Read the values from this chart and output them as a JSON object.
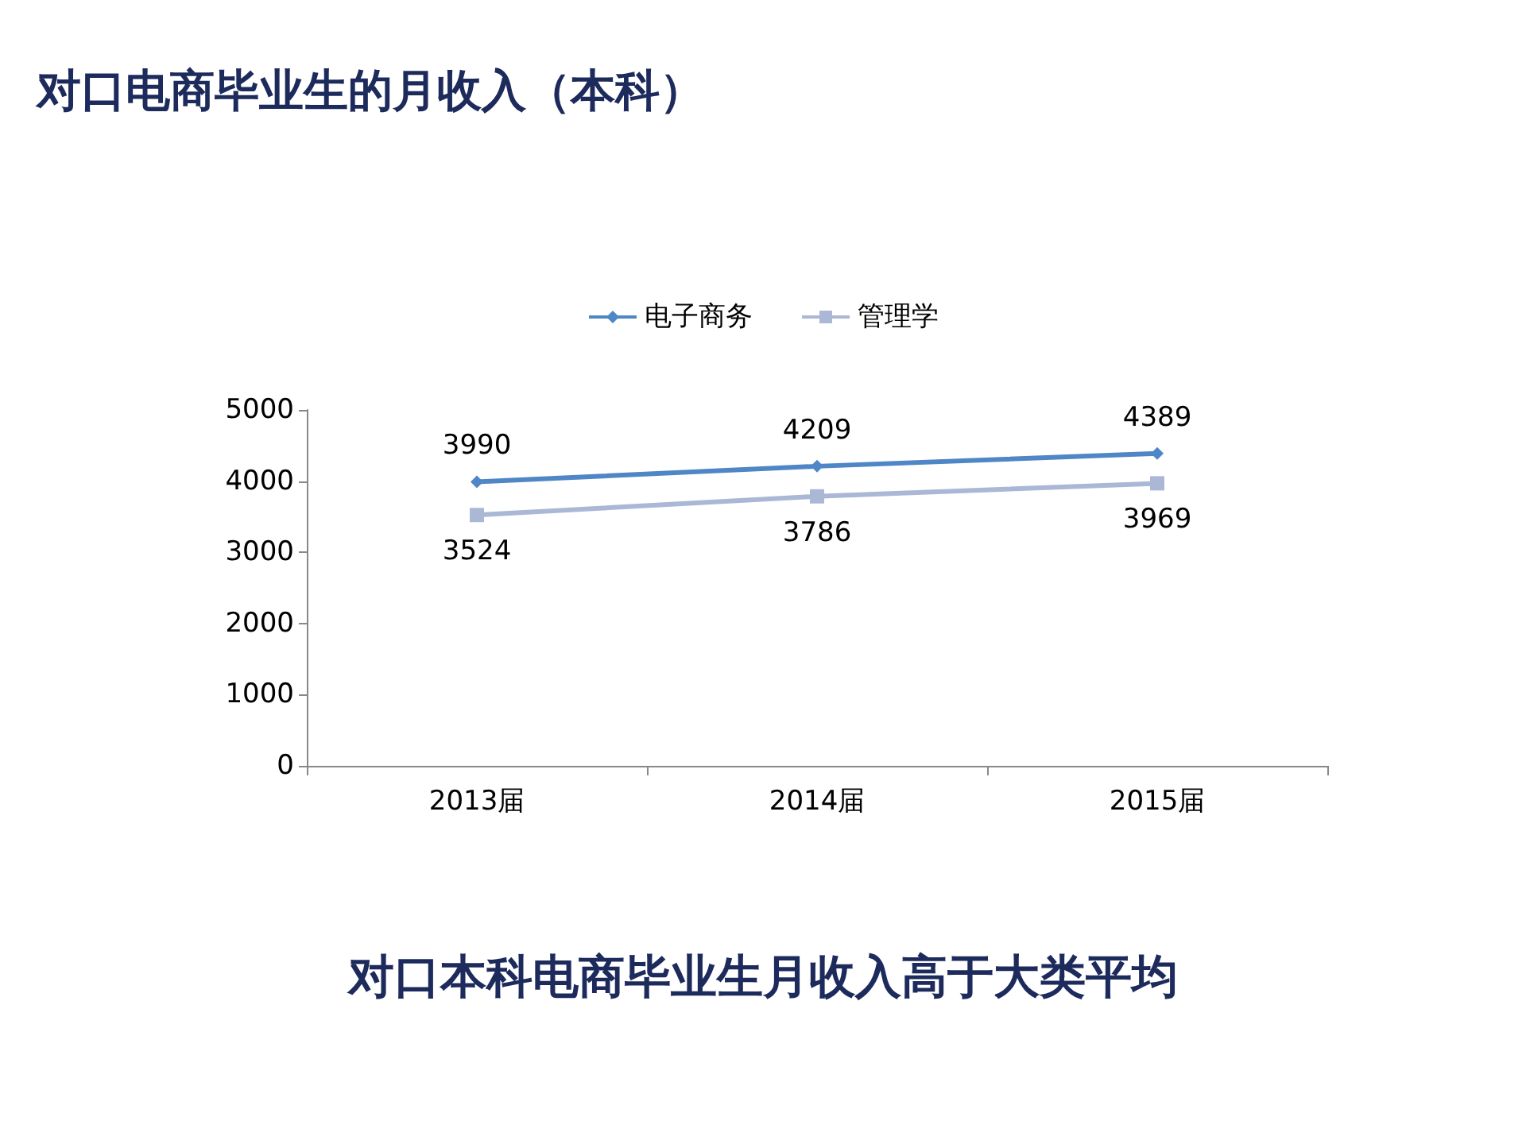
{
  "chart_data": {
    "type": "line",
    "title": "对口电商毕业生的月收入（本科）",
    "annotations": [
      "对口本科电商毕业生月收入高于大类平均"
    ],
    "categories": [
      "2013届",
      "2014届",
      "2015届"
    ],
    "series": [
      {
        "name": "电子商务",
        "color": "#4f86c6",
        "marker": "diamond",
        "values": [
          3990,
          4209,
          4389
        ]
      },
      {
        "name": "管理学",
        "color": "#aab8d6",
        "marker": "square",
        "values": [
          3524,
          3786,
          3969
        ]
      }
    ],
    "ylim": [
      0,
      5000
    ],
    "yticks": [
      0,
      1000,
      2000,
      3000,
      4000,
      5000
    ],
    "grid": false,
    "legend": "top",
    "data_labels": true
  }
}
